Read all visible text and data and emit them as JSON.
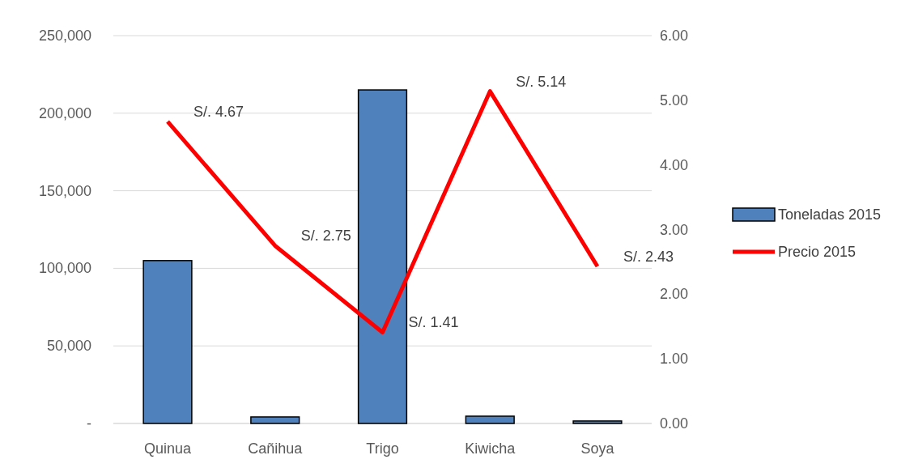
{
  "chart_data": {
    "type": "bar",
    "categories": [
      "Quinua",
      "Cañihua",
      "Trigo",
      "Kiwicha",
      "Soya"
    ],
    "series": [
      {
        "name": "Toneladas 2015",
        "color": "#4f81bd",
        "values": [
          105000,
          4200,
          215000,
          4700,
          1600
        ]
      },
      {
        "name": "Precio 2015",
        "type": "line",
        "axis": "y2",
        "color": "#ff0000",
        "values": [
          4.67,
          2.75,
          1.41,
          5.14,
          2.43
        ],
        "value_labels": [
          "S/. 4.67",
          "S/. 2.75",
          "S/. 1.41",
          "S/. 5.14",
          "S/. 2.43"
        ]
      }
    ],
    "ylim": [
      0,
      250000
    ],
    "yticks": [
      {
        "value": 0,
        "label": "-"
      },
      {
        "value": 50000,
        "label": "50,000"
      },
      {
        "value": 100000,
        "label": "100,000"
      },
      {
        "value": 150000,
        "label": "150,000"
      },
      {
        "value": 200000,
        "label": "200,000"
      },
      {
        "value": 250000,
        "label": "250,000"
      }
    ],
    "y2lim": [
      0,
      6
    ],
    "y2ticks": [
      {
        "value": 0,
        "label": "0.00"
      },
      {
        "value": 1,
        "label": "1.00"
      },
      {
        "value": 2,
        "label": "2.00"
      },
      {
        "value": 3,
        "label": "3.00"
      },
      {
        "value": 4,
        "label": "4.00"
      },
      {
        "value": 5,
        "label": "5.00"
      },
      {
        "value": 6,
        "label": "6.00"
      }
    ],
    "grid": true,
    "legend": "right"
  }
}
